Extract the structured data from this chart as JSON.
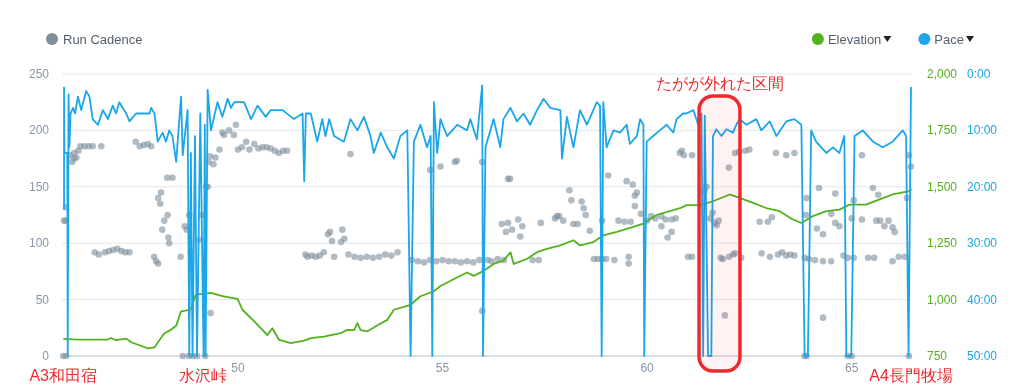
{
  "chart_data": {
    "type": "line",
    "legend": "top",
    "grid": "y",
    "xlim": [
      45.7,
      66.45
    ],
    "xticks": [
      50,
      55,
      60,
      65
    ],
    "ylim": [
      0,
      250
    ],
    "yticks": [
      0,
      50,
      100,
      150,
      200,
      250
    ],
    "y2lim": [
      750,
      2000
    ],
    "y2ticks": [
      750,
      {
        "value": 1000,
        "label": "1,000"
      },
      {
        "value": 1250,
        "label": "1,250"
      },
      {
        "value": 1500,
        "label": "1,500"
      },
      {
        "value": 1750,
        "label": "1,750"
      },
      {
        "value": 2000,
        "label": "2,000"
      }
    ],
    "y3lim": [
      50,
      0
    ],
    "y3ticks": [
      {
        "value": 0,
        "label": "0:00"
      },
      {
        "value": 10,
        "label": "10:00"
      },
      {
        "value": 20,
        "label": "20:00"
      },
      {
        "value": 30,
        "label": "30:00"
      },
      {
        "value": 40,
        "label": "40:00"
      },
      {
        "value": 50,
        "label": "50:00"
      }
    ],
    "bands": [
      {
        "axis": "x",
        "from": 61.27,
        "to": 62.27,
        "label": "たがが外れた区間",
        "color": "#ee2a2f"
      }
    ],
    "annotations": [
      {
        "text": "A3和田宿",
        "x": 45.73,
        "y": 0
      },
      {
        "text": "水沢峠",
        "x": 49.15,
        "y": 0
      },
      {
        "text": "A4長門牧場",
        "x": 66.45,
        "y": 0
      }
    ],
    "series": [
      {
        "name": "Run Cadence",
        "type": "scatter",
        "axis": "y",
        "marker": "circle",
        "color": "#7d8e9c",
        "x": [
          45.73,
          45.75,
          45.8,
          45.8,
          45.8,
          45.9,
          45.95,
          46.0,
          46.0,
          46.05,
          46.1,
          46.15,
          46.25,
          46.35,
          46.45,
          46.5,
          46.6,
          46.66,
          46.75,
          46.85,
          46.95,
          47.05,
          47.15,
          47.25,
          47.35,
          47.5,
          47.6,
          47.7,
          47.8,
          47.88,
          47.95,
          48.0,
          48.05,
          48.05,
          48.1,
          48.12,
          48.15,
          48.2,
          48.27,
          48.28,
          48.3,
          48.32,
          48.4,
          48.6,
          48.65,
          48.7,
          48.75,
          48.8,
          48.81,
          48.85,
          48.9,
          49.0,
          49.07,
          49.13,
          49.2,
          49.22,
          49.26,
          49.28,
          49.32,
          49.33,
          49.4,
          49.45,
          49.55,
          49.62,
          49.66,
          49.78,
          49.9,
          49.95,
          50.0,
          50.1,
          50.2,
          50.28,
          50.4,
          50.5,
          50.6,
          50.7,
          50.8,
          50.9,
          51.0,
          51.1,
          51.2,
          51.65,
          51.7,
          51.8,
          51.9,
          52.0,
          52.1,
          52.2,
          52.25,
          52.3,
          52.35,
          52.52,
          52.55,
          52.6,
          52.7,
          52.75,
          52.85,
          53.0,
          53.15,
          53.3,
          53.45,
          53.6,
          53.75,
          53.9,
          54.25,
          54.4,
          54.55,
          54.7,
          54.7,
          54.85,
          54.95,
          55.0,
          55.15,
          55.3,
          55.3,
          55.35,
          55.45,
          55.6,
          55.75,
          55.9,
          55.97,
          55.97,
          56.1,
          56.2,
          56.35,
          56.45,
          56.5,
          56.55,
          56.6,
          56.6,
          56.65,
          56.7,
          56.85,
          56.9,
          56.95,
          57.2,
          57.35,
          57.4,
          57.75,
          57.8,
          57.85,
          57.95,
          58.1,
          58.15,
          58.2,
          58.3,
          58.4,
          58.45,
          58.5,
          58.6,
          58.7,
          58.8,
          58.9,
          58.9,
          59.0,
          59.05,
          59.2,
          59.3,
          59.45,
          59.5,
          59.55,
          59.55,
          59.6,
          59.65,
          59.7,
          59.7,
          59.75,
          59.85,
          60.0,
          60.1,
          60.2,
          60.35,
          60.35,
          60.45,
          60.5,
          60.6,
          60.6,
          60.7,
          60.8,
          60.85,
          60.9,
          61.0,
          61.1,
          61.1,
          61.4,
          61.45,
          61.55,
          61.6,
          61.65,
          61.7,
          61.75,
          61.8,
          61.85,
          61.9,
          62.0,
          62.0,
          62.1,
          62.15,
          62.15,
          62.25,
          62.3,
          62.4,
          62.5,
          62.75,
          62.8,
          62.95,
          63.0,
          63.05,
          63.15,
          63.2,
          63.3,
          63.4,
          63.4,
          63.5,
          63.6,
          63.6,
          63.85,
          63.85,
          63.88,
          63.9,
          63.9,
          63.95,
          64.1,
          64.15,
          64.2,
          64.3,
          64.3,
          64.3,
          64.5,
          64.5,
          64.6,
          64.6,
          64.7,
          64.8,
          64.9,
          64.9,
          65.0,
          65.0,
          65.05,
          65.05,
          65.25,
          65.25,
          65.4,
          65.52,
          65.55,
          65.6,
          65.65,
          65.7,
          65.8,
          65.9,
          66.0,
          66.0,
          66.05,
          66.15,
          66.3,
          66.35,
          66.4,
          66.4,
          66.45
        ],
        "values": [
          0,
          120,
          120,
          132,
          0,
          178,
          172,
          180,
          175,
          176,
          182,
          186,
          186,
          186,
          186,
          92,
          90,
          186,
          92,
          93,
          94,
          95,
          93,
          92,
          92,
          190,
          186,
          187,
          188,
          186,
          88,
          84,
          82,
          140,
          135,
          145,
          112,
          120,
          158,
          125,
          105,
          100,
          158,
          88,
          0,
          115,
          112,
          0,
          125,
          92,
          0,
          0,
          103,
          125,
          0,
          150,
          150,
          172,
          177,
          38,
          170,
          176,
          183,
          198,
          196,
          200,
          196,
          205,
          183,
          185,
          190,
          183,
          188,
          184,
          185,
          185,
          184,
          182,
          180,
          182,
          182,
          90,
          88,
          89,
          88,
          89,
          92,
          108,
          110,
          102,
          88,
          101,
          112,
          104,
          90,
          179,
          88,
          87,
          88,
          87,
          88,
          90,
          89,
          92,
          85,
          84,
          83,
          85,
          165,
          84,
          168,
          85,
          84,
          84,
          172,
          173,
          83,
          84,
          83,
          85,
          172,
          40,
          85,
          84,
          86,
          117,
          85,
          110,
          118,
          157,
          157,
          112,
          121,
          106,
          115,
          85,
          85,
          118,
          122,
          124,
          124,
          120,
          147,
          138,
          117,
          117,
          137,
          131,
          125,
          111,
          86,
          86,
          86,
          120,
          86,
          160,
          85,
          120,
          119,
          155,
          88,
          82,
          119,
          152,
          142,
          133,
          145,
          126,
          120,
          124,
          122,
          124,
          115,
          121,
          105,
          121,
          110,
          122,
          180,
          182,
          178,
          88,
          88,
          178,
          146,
          150,
          122,
          127,
          118,
          116,
          120,
          87,
          86,
          36,
          88,
          167,
          90,
          91,
          180,
          181,
          87,
          182,
          183,
          119,
          91,
          119,
          88,
          123,
          180,
          90,
          92,
          89,
          178,
          90,
          89,
          180,
          87,
          0,
          125,
          140,
          0,
          86,
          85,
          113,
          149,
          108,
          84,
          34,
          126,
          84,
          118,
          144,
          115,
          89,
          87,
          0,
          122,
          0,
          87,
          138,
          121,
          178,
          87,
          149,
          87,
          120,
          143,
          120,
          115,
          120,
          114,
          84,
          110,
          88,
          88,
          140,
          178,
          0,
          168
        ]
      },
      {
        "name": "Elevation",
        "axis": "y2",
        "color": "#52b21c",
        "x": [
          45.75,
          46.09,
          46.82,
          46.9,
          47.02,
          47.27,
          47.39,
          47.8,
          47.96,
          48.04,
          48.2,
          48.36,
          48.49,
          48.61,
          48.85,
          48.97,
          49.34,
          49.62,
          49.99,
          50.11,
          50.4,
          50.72,
          50.84,
          51.01,
          51.29,
          51.62,
          51.78,
          52.1,
          52.51,
          52.67,
          52.84,
          52.92,
          53.0,
          53.16,
          53.4,
          53.65,
          53.81,
          53.97,
          54.22,
          54.46,
          54.79,
          54.95,
          55.27,
          55.6,
          55.76,
          56.01,
          56.25,
          56.49,
          56.66,
          56.74,
          57.06,
          57.31,
          57.55,
          57.88,
          58.2,
          58.36,
          58.69,
          58.93,
          59.26,
          59.66,
          59.91,
          60.23,
          60.64,
          60.8,
          60.97,
          61.29,
          61.61,
          62.02,
          62.26,
          62.59,
          62.91,
          63.24,
          63.56,
          63.77,
          64.05,
          64.38,
          64.7,
          64.95,
          65.35,
          65.68,
          66.0,
          66.41,
          66.45
        ],
        "values": [
          826,
          823,
          823,
          830,
          820,
          827,
          811,
          784,
          788,
          810,
          851,
          866,
          884,
          948,
          956,
          1022,
          1030,
          1015,
          1003,
          955,
          903,
          843,
          873,
          821,
          807,
          818,
          829,
          836,
          851,
          866,
          865,
          896,
          865,
          859,
          885,
          910,
          955,
          963,
          977,
          1015,
          1037,
          1060,
          1090,
          1120,
          1105,
          1128,
          1158,
          1173,
          1210,
          1158,
          1180,
          1210,
          1225,
          1240,
          1263,
          1240,
          1255,
          1285,
          1300,
          1322,
          1337,
          1375,
          1397,
          1405,
          1419,
          1419,
          1436,
          1466,
          1451,
          1429,
          1406,
          1392,
          1355,
          1340,
          1370,
          1392,
          1399,
          1421,
          1421,
          1444,
          1466,
          1481,
          1488
        ]
      },
      {
        "name": "Pace",
        "axis": "y3",
        "color": "#1aa6e8",
        "x": [
          45.75,
          45.75,
          45.76,
          45.83,
          45.84,
          45.86,
          45.88,
          45.91,
          45.97,
          46.02,
          46.09,
          46.17,
          46.29,
          46.37,
          46.45,
          46.58,
          46.7,
          46.82,
          46.94,
          47.02,
          47.1,
          47.27,
          47.35,
          47.51,
          47.63,
          47.84,
          47.88,
          47.96,
          48.04,
          48.16,
          48.24,
          48.32,
          48.4,
          48.49,
          48.61,
          48.65,
          48.77,
          48.81,
          48.85,
          48.89,
          48.95,
          49.0,
          49.08,
          49.16,
          49.19,
          49.21,
          49.26,
          49.34,
          49.5,
          49.62,
          49.75,
          49.83,
          49.91,
          50.15,
          50.32,
          50.48,
          50.68,
          50.8,
          51.09,
          51.37,
          51.58,
          51.62,
          51.66,
          51.78,
          51.94,
          52.06,
          52.14,
          52.23,
          52.35,
          52.59,
          52.75,
          52.92,
          53.08,
          53.24,
          53.32,
          53.49,
          53.65,
          53.81,
          53.97,
          54.14,
          54.22,
          54.3,
          54.46,
          54.62,
          54.71,
          54.75,
          54.79,
          54.87,
          54.95,
          55.11,
          55.36,
          55.6,
          55.68,
          55.84,
          55.97,
          55.99,
          56.05,
          56.25,
          56.41,
          56.49,
          56.66,
          56.82,
          56.98,
          57.14,
          57.31,
          57.47,
          57.63,
          57.88,
          57.92,
          58.04,
          58.2,
          58.36,
          58.53,
          58.77,
          58.85,
          58.89,
          58.93,
          59.01,
          59.18,
          59.34,
          59.5,
          59.58,
          59.75,
          59.83,
          59.91,
          59.93,
          59.99,
          60.15,
          60.31,
          60.48,
          60.64,
          60.72,
          60.88,
          60.96,
          61.13,
          61.25,
          61.33,
          61.37,
          61.41,
          61.49,
          61.57,
          61.61,
          61.69,
          61.82,
          61.94,
          62.1,
          62.18,
          62.26,
          62.43,
          62.67,
          62.79,
          63.0,
          63.16,
          63.4,
          63.6,
          63.77,
          63.85,
          63.93,
          64.01,
          64.13,
          64.38,
          64.54,
          64.7,
          64.82,
          64.87,
          64.99,
          65.07,
          65.27,
          65.52,
          65.76,
          66.0,
          66.25,
          66.33,
          66.39,
          66.45
        ],
        "values": [
          24.0,
          2.4,
          14.0,
          14.0,
          50,
          3.6,
          13.0,
          7.0,
          6.0,
          7.0,
          4.0,
          6.4,
          3.0,
          4.0,
          8.0,
          9.0,
          6.4,
          8.0,
          5.6,
          7.0,
          5.0,
          7.0,
          8.4,
          7.0,
          7.0,
          7.0,
          6.0,
          7.0,
          12.0,
          10.4,
          12.0,
          10.0,
          11.0,
          15.6,
          4.0,
          14.4,
          6.4,
          50,
          14.0,
          50,
          11.0,
          50,
          7.0,
          50,
          9.0,
          50,
          2.8,
          10.0,
          5.0,
          7.6,
          4.4,
          6.0,
          5.0,
          5.0,
          8.0,
          5.6,
          7.6,
          6.4,
          6.4,
          8.0,
          7.0,
          19.0,
          7.0,
          7.0,
          12.0,
          8.0,
          11.0,
          8.0,
          11.0,
          12.0,
          8.0,
          10.0,
          7.6,
          11.0,
          14.0,
          10.4,
          13.0,
          15.0,
          11.0,
          10.0,
          50,
          12.0,
          9.0,
          13.0,
          11.0,
          50,
          5.0,
          14.0,
          8.0,
          11.0,
          9.0,
          10.0,
          8.0,
          11.6,
          2.0,
          50,
          13.0,
          8.0,
          13.0,
          8.0,
          6.0,
          8.4,
          7.0,
          9.0,
          6.4,
          4.4,
          6.0,
          6.4,
          15.0,
          7.6,
          13.0,
          6.4,
          9.0,
          5.0,
          5.6,
          50,
          5.0,
          13.0,
          10.0,
          10.4,
          9.0,
          12.4,
          11.0,
          8.0,
          9.0,
          50,
          12.0,
          11.0,
          10.0,
          9.0,
          10.4,
          8.0,
          7.0,
          7.0,
          6.4,
          9.0,
          7.0,
          50,
          7.4,
          50,
          50,
          11.0,
          9.8,
          11.0,
          9.8,
          10.4,
          9.0,
          8.0,
          9.0,
          8.0,
          10.0,
          8.4,
          11.0,
          8.4,
          8.0,
          9.0,
          50,
          50,
          10.0,
          12.0,
          14.0,
          13.0,
          14.0,
          11.0,
          50,
          50,
          11.0,
          10.0,
          12.0,
          13.0,
          12.0,
          10.0,
          11.0,
          50,
          2.4
        ]
      }
    ]
  }
}
